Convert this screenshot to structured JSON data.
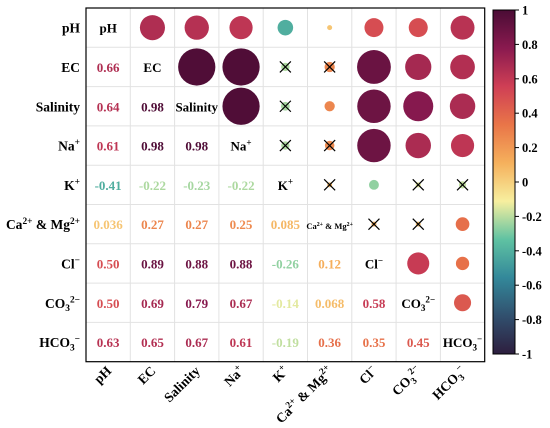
{
  "chart_data": {
    "type": "heatmap",
    "title": "",
    "variables": [
      {
        "base": "pH",
        "sup": "",
        "sub": ""
      },
      {
        "base": "EC",
        "sup": "",
        "sub": ""
      },
      {
        "base": "Salinity",
        "sup": "",
        "sub": ""
      },
      {
        "base": "Na",
        "sup": "+",
        "sub": ""
      },
      {
        "base": "K",
        "sup": "+",
        "sub": ""
      },
      {
        "base": "Ca",
        "sup": "2+",
        "sub": "",
        "tail": " & Mg",
        "tailsup": "2+"
      },
      {
        "base": "Cl",
        "sup": "−",
        "sub": ""
      },
      {
        "base": "CO",
        "sub": "3",
        "sup": "2−"
      },
      {
        "base": "HCO",
        "sub": "3",
        "sup": "−"
      }
    ],
    "matrix": [
      [
        1,
        0.66,
        0.64,
        0.61,
        -0.41,
        0.036,
        0.5,
        0.5,
        0.63
      ],
      [
        0.66,
        1,
        0.98,
        0.98,
        -0.22,
        0.27,
        0.89,
        0.69,
        0.65
      ],
      [
        0.64,
        0.98,
        1,
        0.98,
        -0.23,
        0.27,
        0.88,
        0.79,
        0.67
      ],
      [
        0.61,
        0.98,
        0.98,
        1,
        -0.22,
        0.25,
        0.88,
        0.67,
        0.61
      ],
      [
        -0.41,
        -0.22,
        -0.23,
        -0.22,
        1,
        0.085,
        -0.26,
        -0.14,
        -0.19
      ],
      [
        0.036,
        0.27,
        0.27,
        0.25,
        0.085,
        1,
        0.12,
        0.068,
        0.36
      ],
      [
        0.5,
        0.89,
        0.88,
        0.88,
        -0.26,
        0.12,
        1,
        0.58,
        0.35
      ],
      [
        0.5,
        0.69,
        0.79,
        0.67,
        -0.14,
        0.068,
        0.58,
        1,
        0.45
      ],
      [
        0.63,
        0.65,
        0.67,
        0.61,
        -0.19,
        0.36,
        0.35,
        0.45,
        1
      ]
    ],
    "lower_labels": [
      [
        "",
        "",
        "",
        "",
        "",
        "",
        "",
        "",
        ""
      ],
      [
        "0.66",
        "",
        "",
        "",
        "",
        "",
        "",
        "",
        ""
      ],
      [
        "0.64",
        "0.98",
        "",
        "",
        "",
        "",
        "",
        "",
        ""
      ],
      [
        "0.61",
        "0.98",
        "0.98",
        "",
        "",
        "",
        "",
        "",
        ""
      ],
      [
        "-0.41",
        "-0.22",
        "-0.23",
        "-0.22",
        "",
        "",
        "",
        "",
        ""
      ],
      [
        "0.036",
        "0.27",
        "0.27",
        "0.25",
        "0.085",
        "",
        "",
        "",
        ""
      ],
      [
        "0.50",
        "0.89",
        "0.88",
        "0.88",
        "-0.26",
        "0.12",
        "",
        "",
        ""
      ],
      [
        "0.50",
        "0.69",
        "0.79",
        "0.67",
        "-0.14",
        "0.068",
        "0.58",
        "",
        ""
      ],
      [
        "0.63",
        "0.65",
        "0.67",
        "0.61",
        "-0.19",
        "0.36",
        "0.35",
        "0.45",
        ""
      ]
    ],
    "not_significant": [
      [
        1,
        5
      ],
      [
        1,
        4
      ],
      [
        2,
        4
      ],
      [
        3,
        4
      ],
      [
        3,
        5
      ],
      [
        4,
        5
      ],
      [
        4,
        7
      ],
      [
        4,
        8
      ],
      [
        5,
        6
      ],
      [
        5,
        7
      ]
    ],
    "colorbar": {
      "range": [
        -1,
        1
      ],
      "ticks": [
        "1",
        "0.8",
        "0.6",
        "0.4",
        "0.2",
        "0",
        "-0.2",
        "-0.4",
        "-0.6",
        "-0.8",
        "-1"
      ],
      "tick_values": [
        1,
        0.8,
        0.6,
        0.4,
        0.2,
        0,
        -0.2,
        -0.4,
        -0.6,
        -0.8,
        -1
      ],
      "colors": [
        "#2d1e3e",
        "#31506e",
        "#33889a",
        "#5fc2a2",
        "#f7ef9f",
        "#f5b05c",
        "#e97548",
        "#cf3f55",
        "#8a1a4f",
        "#4a0c35"
      ]
    },
    "legend_placement": "right",
    "grid": true
  }
}
